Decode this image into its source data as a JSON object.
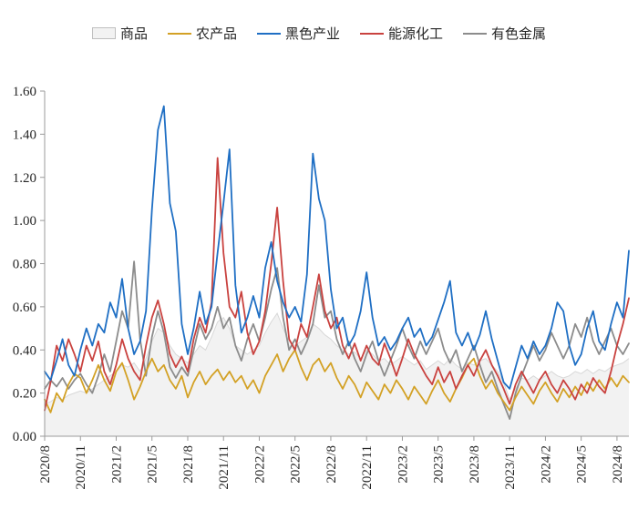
{
  "legend": {
    "items": [
      {
        "key": "commodity",
        "label": "商品",
        "swatch": "area",
        "color": "#f2f2f2",
        "border": "#bfbfbf"
      },
      {
        "key": "agricultural",
        "label": "农产品",
        "swatch": "line",
        "color": "#d3a125"
      },
      {
        "key": "ferrous",
        "label": "黑色产业",
        "swatch": "line",
        "color": "#1f6fc4"
      },
      {
        "key": "energy-chem",
        "label": "能源化工",
        "swatch": "line",
        "color": "#c9423f"
      },
      {
        "key": "nonferrous",
        "label": "有色金属",
        "swatch": "line",
        "color": "#8c8c8c"
      }
    ]
  },
  "chart_data": {
    "type": "line",
    "title": "",
    "legend_position": "top",
    "grid": false,
    "x_axis": {
      "tick_labels": [
        "2020/8",
        "2020/11",
        "2021/2",
        "2021/5",
        "2021/8",
        "2021/11",
        "2022/2",
        "2022/5",
        "2022/8",
        "2022/11",
        "2023/2",
        "2023/5",
        "2023/8",
        "2023/11",
        "2024/2",
        "2024/5",
        "2024/8"
      ],
      "tick_months": [
        0,
        3,
        6,
        9,
        12,
        15,
        18,
        21,
        24,
        27,
        30,
        33,
        36,
        39,
        42,
        45,
        48
      ],
      "label_rotation_deg": -90
    },
    "y_axis": {
      "min": 0.0,
      "max": 1.6,
      "tick_step": 0.2,
      "tick_labels": [
        "0.00",
        "0.20",
        "0.40",
        "0.60",
        "0.80",
        "1.00",
        "1.20",
        "1.40",
        "1.60"
      ]
    },
    "x_start_month": 0,
    "x_step_months": 0.5,
    "x_months_span": 49,
    "series": [
      {
        "key": "commodity",
        "name": "商品",
        "type": "area",
        "color": "#d8d8d8",
        "fill": "#f2f2f2",
        "values": [
          0.15,
          0.16,
          0.18,
          0.17,
          0.19,
          0.2,
          0.21,
          0.2,
          0.22,
          0.24,
          0.26,
          0.28,
          0.3,
          0.33,
          0.32,
          0.34,
          0.3,
          0.36,
          0.44,
          0.5,
          0.48,
          0.42,
          0.38,
          0.36,
          0.34,
          0.38,
          0.42,
          0.4,
          0.46,
          0.53,
          0.55,
          0.5,
          0.42,
          0.4,
          0.38,
          0.4,
          0.42,
          0.48,
          0.53,
          0.57,
          0.5,
          0.44,
          0.42,
          0.44,
          0.46,
          0.52,
          0.5,
          0.47,
          0.45,
          0.42,
          0.4,
          0.38,
          0.39,
          0.36,
          0.4,
          0.38,
          0.35,
          0.36,
          0.33,
          0.35,
          0.37,
          0.35,
          0.33,
          0.35,
          0.31,
          0.33,
          0.35,
          0.33,
          0.36,
          0.33,
          0.31,
          0.34,
          0.33,
          0.35,
          0.36,
          0.33,
          0.3,
          0.25,
          0.17,
          0.22,
          0.27,
          0.26,
          0.28,
          0.26,
          0.28,
          0.3,
          0.28,
          0.27,
          0.28,
          0.3,
          0.29,
          0.31,
          0.29,
          0.31,
          0.3,
          0.32,
          0.33,
          0.34,
          0.36
        ]
      },
      {
        "key": "nonferrous",
        "name": "有色金属",
        "type": "line",
        "color": "#8c8c8c",
        "values": [
          0.22,
          0.26,
          0.23,
          0.27,
          0.22,
          0.26,
          0.29,
          0.24,
          0.2,
          0.28,
          0.38,
          0.3,
          0.44,
          0.58,
          0.5,
          0.81,
          0.45,
          0.28,
          0.46,
          0.58,
          0.48,
          0.32,
          0.27,
          0.32,
          0.28,
          0.4,
          0.52,
          0.45,
          0.5,
          0.6,
          0.5,
          0.55,
          0.42,
          0.35,
          0.45,
          0.52,
          0.44,
          0.55,
          0.68,
          0.78,
          0.55,
          0.4,
          0.45,
          0.38,
          0.44,
          0.52,
          0.7,
          0.55,
          0.58,
          0.45,
          0.38,
          0.44,
          0.36,
          0.3,
          0.38,
          0.44,
          0.35,
          0.28,
          0.35,
          0.42,
          0.5,
          0.42,
          0.36,
          0.44,
          0.38,
          0.44,
          0.5,
          0.4,
          0.34,
          0.4,
          0.3,
          0.36,
          0.42,
          0.33,
          0.25,
          0.3,
          0.22,
          0.15,
          0.08,
          0.2,
          0.28,
          0.35,
          0.42,
          0.35,
          0.4,
          0.48,
          0.42,
          0.36,
          0.42,
          0.52,
          0.46,
          0.55,
          0.44,
          0.38,
          0.44,
          0.5,
          0.42,
          0.38,
          0.43
        ]
      },
      {
        "key": "agricultural",
        "name": "农产品",
        "type": "line",
        "color": "#d3a125",
        "values": [
          0.17,
          0.11,
          0.2,
          0.16,
          0.24,
          0.29,
          0.27,
          0.2,
          0.26,
          0.33,
          0.26,
          0.21,
          0.3,
          0.34,
          0.26,
          0.17,
          0.23,
          0.3,
          0.36,
          0.3,
          0.33,
          0.26,
          0.22,
          0.28,
          0.18,
          0.25,
          0.3,
          0.24,
          0.28,
          0.31,
          0.26,
          0.3,
          0.25,
          0.28,
          0.22,
          0.26,
          0.2,
          0.28,
          0.33,
          0.38,
          0.3,
          0.36,
          0.4,
          0.32,
          0.26,
          0.33,
          0.36,
          0.3,
          0.34,
          0.27,
          0.22,
          0.28,
          0.24,
          0.18,
          0.25,
          0.21,
          0.17,
          0.24,
          0.2,
          0.26,
          0.22,
          0.17,
          0.23,
          0.19,
          0.15,
          0.21,
          0.26,
          0.2,
          0.16,
          0.22,
          0.27,
          0.33,
          0.36,
          0.28,
          0.22,
          0.26,
          0.2,
          0.16,
          0.12,
          0.18,
          0.23,
          0.19,
          0.15,
          0.21,
          0.25,
          0.2,
          0.16,
          0.22,
          0.18,
          0.23,
          0.19,
          0.25,
          0.21,
          0.26,
          0.22,
          0.27,
          0.23,
          0.28,
          0.25
        ]
      },
      {
        "key": "energy-chem",
        "name": "能源化工",
        "type": "line",
        "color": "#c9423f",
        "values": [
          0.12,
          0.25,
          0.42,
          0.35,
          0.45,
          0.38,
          0.3,
          0.42,
          0.35,
          0.44,
          0.3,
          0.24,
          0.33,
          0.45,
          0.36,
          0.3,
          0.26,
          0.42,
          0.55,
          0.63,
          0.52,
          0.38,
          0.32,
          0.37,
          0.3,
          0.45,
          0.55,
          0.48,
          0.62,
          1.29,
          0.85,
          0.6,
          0.55,
          0.67,
          0.48,
          0.38,
          0.44,
          0.58,
          0.8,
          1.06,
          0.72,
          0.45,
          0.4,
          0.52,
          0.46,
          0.6,
          0.75,
          0.58,
          0.5,
          0.55,
          0.42,
          0.36,
          0.43,
          0.35,
          0.42,
          0.36,
          0.33,
          0.43,
          0.36,
          0.28,
          0.36,
          0.45,
          0.38,
          0.33,
          0.28,
          0.24,
          0.32,
          0.25,
          0.3,
          0.22,
          0.28,
          0.33,
          0.28,
          0.35,
          0.4,
          0.33,
          0.28,
          0.22,
          0.15,
          0.24,
          0.3,
          0.25,
          0.2,
          0.26,
          0.3,
          0.24,
          0.2,
          0.26,
          0.22,
          0.17,
          0.24,
          0.2,
          0.27,
          0.23,
          0.2,
          0.3,
          0.42,
          0.52,
          0.64
        ]
      },
      {
        "key": "ferrous",
        "name": "黑色产业",
        "type": "line",
        "color": "#1f6fc4",
        "values": [
          0.3,
          0.26,
          0.35,
          0.45,
          0.33,
          0.28,
          0.4,
          0.5,
          0.42,
          0.52,
          0.48,
          0.62,
          0.55,
          0.73,
          0.5,
          0.38,
          0.44,
          0.58,
          1.05,
          1.42,
          1.53,
          1.08,
          0.95,
          0.52,
          0.38,
          0.5,
          0.67,
          0.52,
          0.6,
          0.85,
          1.08,
          1.33,
          0.7,
          0.48,
          0.55,
          0.65,
          0.55,
          0.78,
          0.9,
          0.72,
          0.62,
          0.55,
          0.6,
          0.53,
          0.75,
          1.31,
          1.1,
          1.0,
          0.68,
          0.5,
          0.55,
          0.42,
          0.47,
          0.58,
          0.76,
          0.55,
          0.42,
          0.46,
          0.4,
          0.44,
          0.5,
          0.55,
          0.46,
          0.5,
          0.42,
          0.46,
          0.54,
          0.62,
          0.72,
          0.48,
          0.42,
          0.48,
          0.4,
          0.47,
          0.58,
          0.45,
          0.35,
          0.25,
          0.22,
          0.32,
          0.42,
          0.36,
          0.44,
          0.38,
          0.42,
          0.5,
          0.62,
          0.58,
          0.42,
          0.33,
          0.38,
          0.5,
          0.58,
          0.44,
          0.4,
          0.52,
          0.62,
          0.55,
          0.86
        ]
      }
    ]
  },
  "style": {
    "axis_color": "#9b9b9b",
    "tick_label_color": "#262626",
    "background": "#ffffff"
  }
}
